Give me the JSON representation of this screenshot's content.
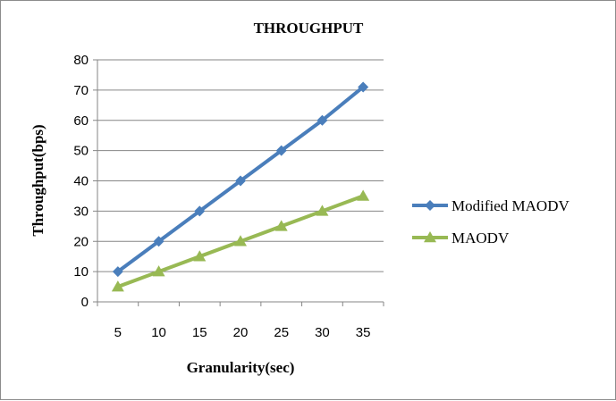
{
  "chart_data": {
    "type": "line",
    "title": "THROUGHPUT",
    "xlabel": "Granularity(sec)",
    "ylabel": "Throughput(bps)",
    "x": [
      5,
      10,
      15,
      20,
      25,
      30,
      35
    ],
    "ylim": [
      0,
      80
    ],
    "yticks": [
      0,
      10,
      20,
      30,
      40,
      50,
      60,
      70,
      80
    ],
    "grid": true,
    "legend_position": "right",
    "series": [
      {
        "name": "Modified MAODV",
        "values": [
          10,
          20,
          30,
          40,
          50,
          60,
          71
        ],
        "color": "#4a7ebb",
        "marker": "diamond"
      },
      {
        "name": "MAODV",
        "values": [
          5,
          10,
          15,
          20,
          25,
          30,
          35
        ],
        "color": "#98b954",
        "marker": "triangle"
      }
    ]
  }
}
